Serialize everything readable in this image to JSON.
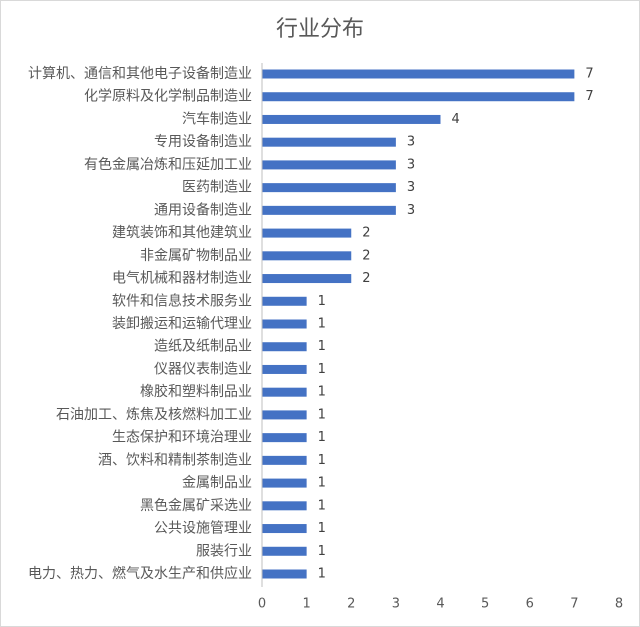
{
  "chart_data": {
    "type": "bar",
    "orientation": "horizontal",
    "title": "行业分布",
    "categories": [
      "计算机、通信和其他电子设备制造业",
      "化学原料及化学制品制造业",
      "汽车制造业",
      "专用设备制造业",
      "有色金属冶炼和压延加工业",
      "医药制造业",
      "通用设备制造业",
      "建筑装饰和其他建筑业",
      "非金属矿物制品业",
      "电气机械和器材制造业",
      "软件和信息技术服务业",
      "装卸搬运和运输代理业",
      "造纸及纸制品业",
      "仪器仪表制造业",
      "橡胶和塑料制品业",
      "石油加工、炼焦及核燃料加工业",
      "生态保护和环境治理业",
      "酒、饮料和精制茶制造业",
      "金属制品业",
      "黑色金属矿采选业",
      "公共设施管理业",
      "服装行业",
      "电力、热力、燃气及水生产和供应业"
    ],
    "values": [
      7,
      7,
      4,
      3,
      3,
      3,
      3,
      2,
      2,
      2,
      1,
      1,
      1,
      1,
      1,
      1,
      1,
      1,
      1,
      1,
      1,
      1,
      1
    ],
    "xlim": [
      0,
      8
    ],
    "xticks": [
      0,
      1,
      2,
      3,
      4,
      5,
      6,
      7,
      8
    ],
    "grid": false,
    "legend": "none",
    "show_data_labels": true,
    "bar_color": "#4472C4"
  }
}
